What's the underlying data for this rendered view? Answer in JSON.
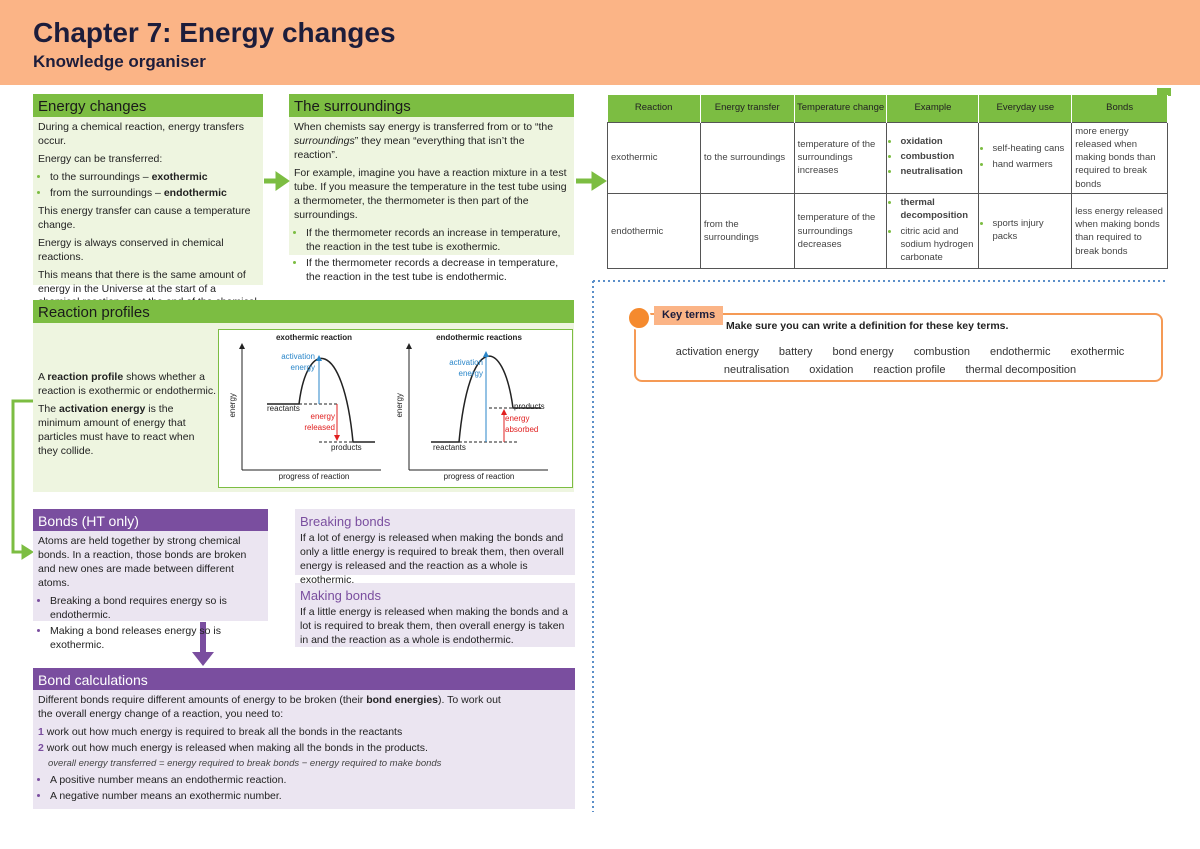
{
  "header": {
    "title": "Chapter 7: Energy changes",
    "subtitle": "Knowledge organiser"
  },
  "energy_changes": {
    "heading": "Energy changes",
    "p1": "During a chemical reaction, energy transfers occur.",
    "p2": "Energy can be transferred:",
    "bullets": [
      [
        "to the surroundings – ",
        "exothermic"
      ],
      [
        "from the surroundings – ",
        "endothermic"
      ]
    ],
    "p3": "This energy transfer can cause a temperature change.",
    "p4": "Energy is always conserved in chemical reactions.",
    "p5": "This means that there is the same amount of energy in the Universe at the start of a chemical reaction as at the end of the chemical reaction."
  },
  "surroundings": {
    "heading": "The surroundings",
    "p1": [
      "When chemists say energy is transferred from or to “the ",
      "surroundings",
      "” they mean “everything that isn’t the reaction”."
    ],
    "p2": "For example, imagine you have a reaction mixture in a test tube. If you measure the temperature in the test tube using a thermometer, the thermometer is then part of the surroundings.",
    "bullets": [
      "If the thermometer records an increase in temperature, the reaction in the test tube is exothermic.",
      "If the thermometer records a decrease in temperature, the reaction in the test tube is endothermic."
    ]
  },
  "table": {
    "headers": [
      "Reaction",
      "Energy transfer",
      "Temperature change",
      "Example",
      "Everyday use",
      "Bonds"
    ],
    "rows": [
      [
        "exothermic",
        "to the surroundings",
        "temperature of the surroundings increases",
        [
          "oxidation",
          "combustion",
          "neutralisation"
        ],
        [
          "self-heating cans",
          "hand warmers"
        ],
        "more energy released when making bonds than required to break bonds"
      ],
      [
        "endothermic",
        "from the surroundings",
        "temperature of the surroundings decreases",
        [
          "thermal decomposition",
          "citric acid and sodium hydrogen carbonate"
        ],
        [
          "sports injury packs"
        ],
        "less energy released when making bonds than required to break bonds"
      ]
    ]
  },
  "reaction_profiles": {
    "heading": "Reaction profiles",
    "p1": [
      "A ",
      "reaction profile",
      " shows whether a reaction is exothermic or endothermic."
    ],
    "p2": [
      "The ",
      "activation energy",
      " is the minimum amount of energy that particles must have to react when they collide."
    ],
    "diagrams": [
      {
        "title": "exothermic reaction",
        "y_label": "energy",
        "x_label": "progress of reaction",
        "activation": "activation energy",
        "reactants": "reactants",
        "change": "energy released",
        "products": "products"
      },
      {
        "title": "endothermic reactions",
        "y_label": "energy",
        "x_label": "progress of reaction",
        "activation": "activation energy",
        "reactants": "reactants",
        "change": "energy absorbed",
        "products": "products"
      }
    ]
  },
  "key_terms": {
    "label": "Key terms",
    "instruction": "Make sure you can write a definition for these key terms.",
    "terms": [
      "activation energy",
      "battery",
      "bond energy",
      "combustion",
      "endothermic",
      "exothermic",
      "neutralisation",
      "oxidation",
      "reaction profile",
      "thermal decomposition"
    ]
  },
  "bonds": {
    "heading": "Bonds (HT only)",
    "p1": "Atoms are held together by strong chemical bonds. In a reaction, those bonds are broken and new ones are made between different atoms.",
    "bullets": [
      "Breaking a bond requires energy so is endothermic.",
      "Making a bond releases energy so is exothermic."
    ]
  },
  "breaking": {
    "heading": "Breaking bonds",
    "text": "If a lot of energy is released when making the bonds and only a little energy is required to break them, then overall energy is released and the reaction as a whole is exothermic."
  },
  "making": {
    "heading": "Making bonds",
    "text": "If a little energy is released when making the bonds and a lot is required to break them, then overall energy is taken in and the reaction as a whole is endothermic."
  },
  "calculations": {
    "heading": "Bond calculations",
    "p1": [
      "Different bonds require different amounts of energy to be broken (their ",
      "bond energies",
      "). To work out the overall energy change of a reaction, you need to:"
    ],
    "steps": [
      {
        "number": "1",
        "text": "work out how much energy is required to break all the bonds in the reactants"
      },
      {
        "number": "2",
        "text": "work out how much energy is released when making all the bonds in the products."
      }
    ],
    "formula": "overall energy transferred = energy required to break bonds − energy required to make bonds",
    "bullets": [
      "A positive number means an endothermic reaction.",
      "A negative number means an exothermic number."
    ]
  }
}
